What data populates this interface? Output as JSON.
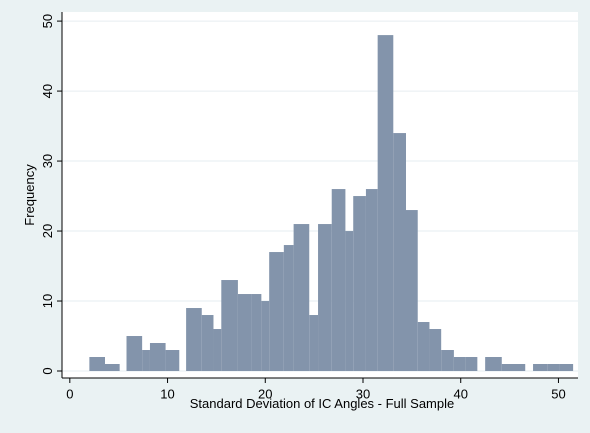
{
  "chart_data": {
    "type": "histogram",
    "xlabel": "Standard Deviation of IC Angles - Full Sample",
    "ylabel": "Frequency",
    "bins": [
      2.0,
      3.6,
      5.1,
      5.8,
      7.4,
      8.2,
      9.8,
      11.2,
      11.9,
      13.5,
      14.7,
      15.5,
      17.2,
      18.6,
      19.6,
      20.4,
      21.9,
      22.9,
      24.5,
      25.4,
      26.8,
      28.2,
      29.0,
      30.3,
      31.5,
      33.1,
      34.4,
      35.6,
      36.8,
      38.0,
      39.3,
      40.5,
      41.7,
      42.5,
      44.2,
      45.4,
      46.6,
      47.4,
      48.9,
      50.1,
      51.5
    ],
    "counts": [
      2,
      1,
      0,
      5,
      3,
      4,
      3,
      0,
      9,
      8,
      6,
      13,
      11,
      11,
      10,
      17,
      18,
      21,
      8,
      21,
      26,
      20,
      25,
      26,
      48,
      34,
      23,
      7,
      6,
      3,
      2,
      2,
      0,
      2,
      1,
      1,
      0,
      1,
      1,
      1
    ],
    "color": "#8394ab",
    "xlim": [
      -0.8,
      52
    ],
    "ylim": [
      -1,
      51.3
    ],
    "xticks": [
      0,
      10,
      20,
      30,
      40,
      50
    ],
    "yticks": [
      0,
      10,
      20,
      30,
      40,
      50
    ],
    "grid": true
  }
}
